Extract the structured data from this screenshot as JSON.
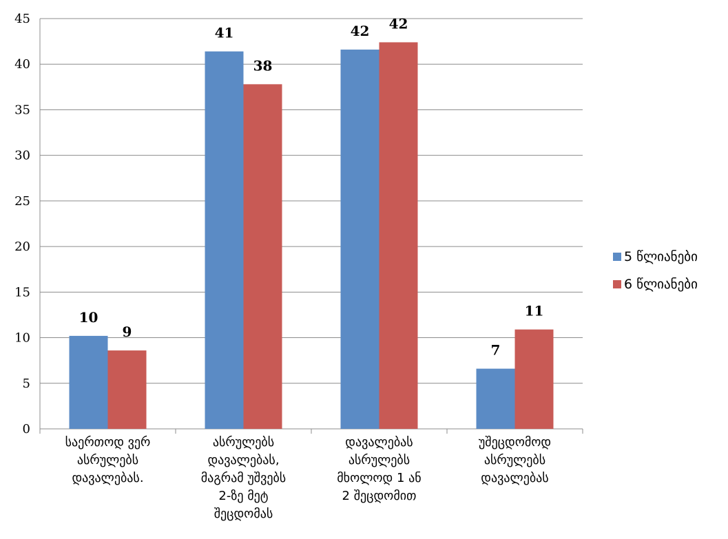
{
  "chart_data": {
    "type": "bar",
    "categories": [
      [
        "საერთოდ ვერ",
        "ასრულებს",
        "დავალებას."
      ],
      [
        "ასრულებს",
        "დავალებას,",
        "მაგრამ უშვებს",
        "2-ზე მეტ",
        "შეცდომას"
      ],
      [
        "დავალებას",
        "ასრულებს",
        "მხოლოდ 1 ან",
        "2 შეცდომით"
      ],
      [
        "უშეცდომოდ",
        "ასრულებს",
        "დავალებას"
      ]
    ],
    "series": [
      {
        "name": "5 წლიანები",
        "color": "#5B8BC5",
        "values": [
          10.2,
          41.4,
          41.6,
          6.6
        ],
        "labels": [
          "10",
          "41",
          "42",
          "7"
        ]
      },
      {
        "name": "6 წლიანები",
        "color": "#C85A55",
        "values": [
          8.6,
          37.8,
          42.4,
          10.9
        ],
        "labels": [
          "9",
          "38",
          "42",
          "11"
        ]
      }
    ],
    "ylim": [
      0,
      45
    ],
    "yticks": [
      0,
      5,
      10,
      15,
      20,
      25,
      30,
      35,
      40,
      45
    ],
    "grid": true,
    "legend": "right"
  }
}
